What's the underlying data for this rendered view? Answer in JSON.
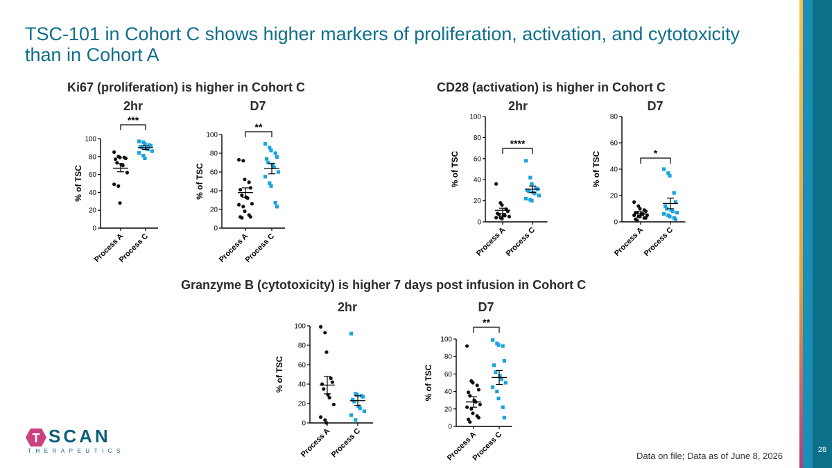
{
  "slide": {
    "title": "TSC-101 in Cohort C shows higher markers of proliferation, activation, and cytotoxicity than in Cohort A",
    "footer": "Data on file; Data as of June 8, 2026",
    "page_number": "28",
    "logo": {
      "letter": "T",
      "word": "SCAN",
      "sub": "THERAPEUTICS"
    }
  },
  "sections": [
    {
      "label": "Ki67 (proliferation) is higher in Cohort C"
    },
    {
      "label": "CD28 (activation) is higher in Cohort C"
    },
    {
      "label": "Granzyme B (cytotoxicity) is higher 7 days post infusion in Cohort C"
    }
  ],
  "colors": {
    "process_a": "#111111",
    "process_c": "#1aa3de",
    "title": "#0f6f8a",
    "accent_bar": "#0e6f88"
  },
  "chart_data": [
    {
      "type": "scatter",
      "panel": "Ki67 2hr",
      "title": "2hr",
      "ylabel": "% of TSC",
      "categories": [
        "Process A",
        "Process C"
      ],
      "ylim": [
        0,
        100
      ],
      "yticks": [
        0,
        20,
        40,
        60,
        80,
        100
      ],
      "series": [
        {
          "name": "Process A",
          "values": [
            85,
            80,
            79,
            79,
            78,
            77,
            73,
            71,
            70,
            62,
            49,
            47,
            28
          ],
          "mean": 67,
          "sem_low": 63,
          "sem_high": 72
        },
        {
          "name": "Process C",
          "values": [
            97,
            96,
            94,
            93,
            92,
            91,
            90,
            89,
            88,
            86,
            84,
            81,
            78
          ],
          "mean": 90,
          "sem_low": 88,
          "sem_high": 92
        }
      ],
      "significance": "***"
    },
    {
      "type": "scatter",
      "panel": "Ki67 D7",
      "title": "D7",
      "ylabel": "% of TSC",
      "categories": [
        "Process A",
        "Process C"
      ],
      "ylim": [
        0,
        100
      ],
      "yticks": [
        0,
        20,
        40,
        60,
        80,
        100
      ],
      "series": [
        {
          "name": "Process A",
          "values": [
            73,
            72,
            52,
            49,
            43,
            41,
            35,
            33,
            32,
            26,
            25,
            23,
            18,
            14,
            12,
            12,
            11
          ],
          "mean": 38,
          "sem_low": 33,
          "sem_high": 43
        },
        {
          "name": "Process C",
          "values": [
            90,
            86,
            83,
            80,
            76,
            74,
            70,
            68,
            65,
            60,
            55,
            48,
            45,
            27,
            23
          ],
          "mean": 64,
          "sem_low": 58,
          "sem_high": 69
        },
        {
          "name": "",
          "values": []
        }
      ],
      "significance": "**"
    },
    {
      "type": "scatter",
      "panel": "CD28 2hr",
      "title": "2hr",
      "ylabel": "% of TSC",
      "categories": [
        "Process A",
        "Process C"
      ],
      "ylim": [
        0,
        100
      ],
      "yticks": [
        0,
        20,
        40,
        60,
        80,
        100
      ],
      "series": [
        {
          "name": "Process A",
          "values": [
            36,
            18,
            16,
            12,
            10,
            8,
            7,
            6,
            6,
            5,
            4,
            4,
            3
          ],
          "mean": 11,
          "sem_low": 8,
          "sem_high": 13
        },
        {
          "name": "Process C",
          "values": [
            58,
            42,
            36,
            32,
            31,
            30,
            29,
            28,
            27,
            25,
            22,
            21,
            20
          ],
          "mean": 31,
          "sem_low": 28,
          "sem_high": 34
        }
      ],
      "significance": "****"
    },
    {
      "type": "scatter",
      "panel": "CD28 D7",
      "title": "D7",
      "ylabel": "% of TSC",
      "categories": [
        "Process A",
        "Process C"
      ],
      "ylim": [
        0,
        80
      ],
      "yticks": [
        0,
        20,
        40,
        60,
        80
      ],
      "series": [
        {
          "name": "Process A",
          "values": [
            15,
            12,
            10,
            9,
            8,
            7,
            7,
            6,
            6,
            5,
            5,
            4,
            4,
            3,
            3,
            2,
            1
          ],
          "mean": 6,
          "sem_low": 5,
          "sem_high": 8
        },
        {
          "name": "Process C",
          "values": [
            40,
            37,
            35,
            22,
            15,
            12,
            10,
            9,
            8,
            7,
            6,
            5,
            4,
            3,
            2
          ],
          "mean": 14,
          "sem_low": 10,
          "sem_high": 18
        }
      ],
      "significance": "*"
    },
    {
      "type": "scatter",
      "panel": "Granzyme B 2hr",
      "title": "2hr",
      "ylabel": "% of TSC",
      "categories": [
        "Process A",
        "Process C"
      ],
      "ylim": [
        0,
        100
      ],
      "yticks": [
        0,
        20,
        40,
        60,
        80,
        100
      ],
      "series": [
        {
          "name": "Process A",
          "values": [
            99,
            93,
            73,
            46,
            42,
            40,
            35,
            29,
            26,
            19,
            6,
            3,
            0
          ],
          "mean": 39,
          "sem_low": 30,
          "sem_high": 48
        },
        {
          "name": "Process C",
          "values": [
            92,
            30,
            29,
            28,
            27,
            24,
            22,
            17,
            15,
            12,
            8,
            3
          ],
          "mean": 23,
          "sem_low": 18,
          "sem_high": 28
        }
      ],
      "significance": ""
    },
    {
      "type": "scatter",
      "panel": "Granzyme B D7",
      "title": "D7",
      "ylabel": "% of  TSC",
      "categories": [
        "Process A",
        "Process C"
      ],
      "ylim": [
        0,
        100
      ],
      "yticks": [
        0,
        20,
        40,
        60,
        80,
        100
      ],
      "series": [
        {
          "name": "Process A",
          "values": [
            92,
            52,
            50,
            47,
            42,
            39,
            35,
            30,
            28,
            25,
            22,
            20,
            15,
            12,
            10,
            8,
            5
          ],
          "mean": 28,
          "sem_low": 22,
          "sem_high": 34
        },
        {
          "name": "Process C",
          "values": [
            99,
            95,
            93,
            92,
            75,
            70,
            62,
            58,
            54,
            50,
            45,
            40,
            32,
            22,
            10
          ],
          "mean": 56,
          "sem_low": 48,
          "sem_high": 64
        }
      ],
      "significance": "**"
    }
  ]
}
